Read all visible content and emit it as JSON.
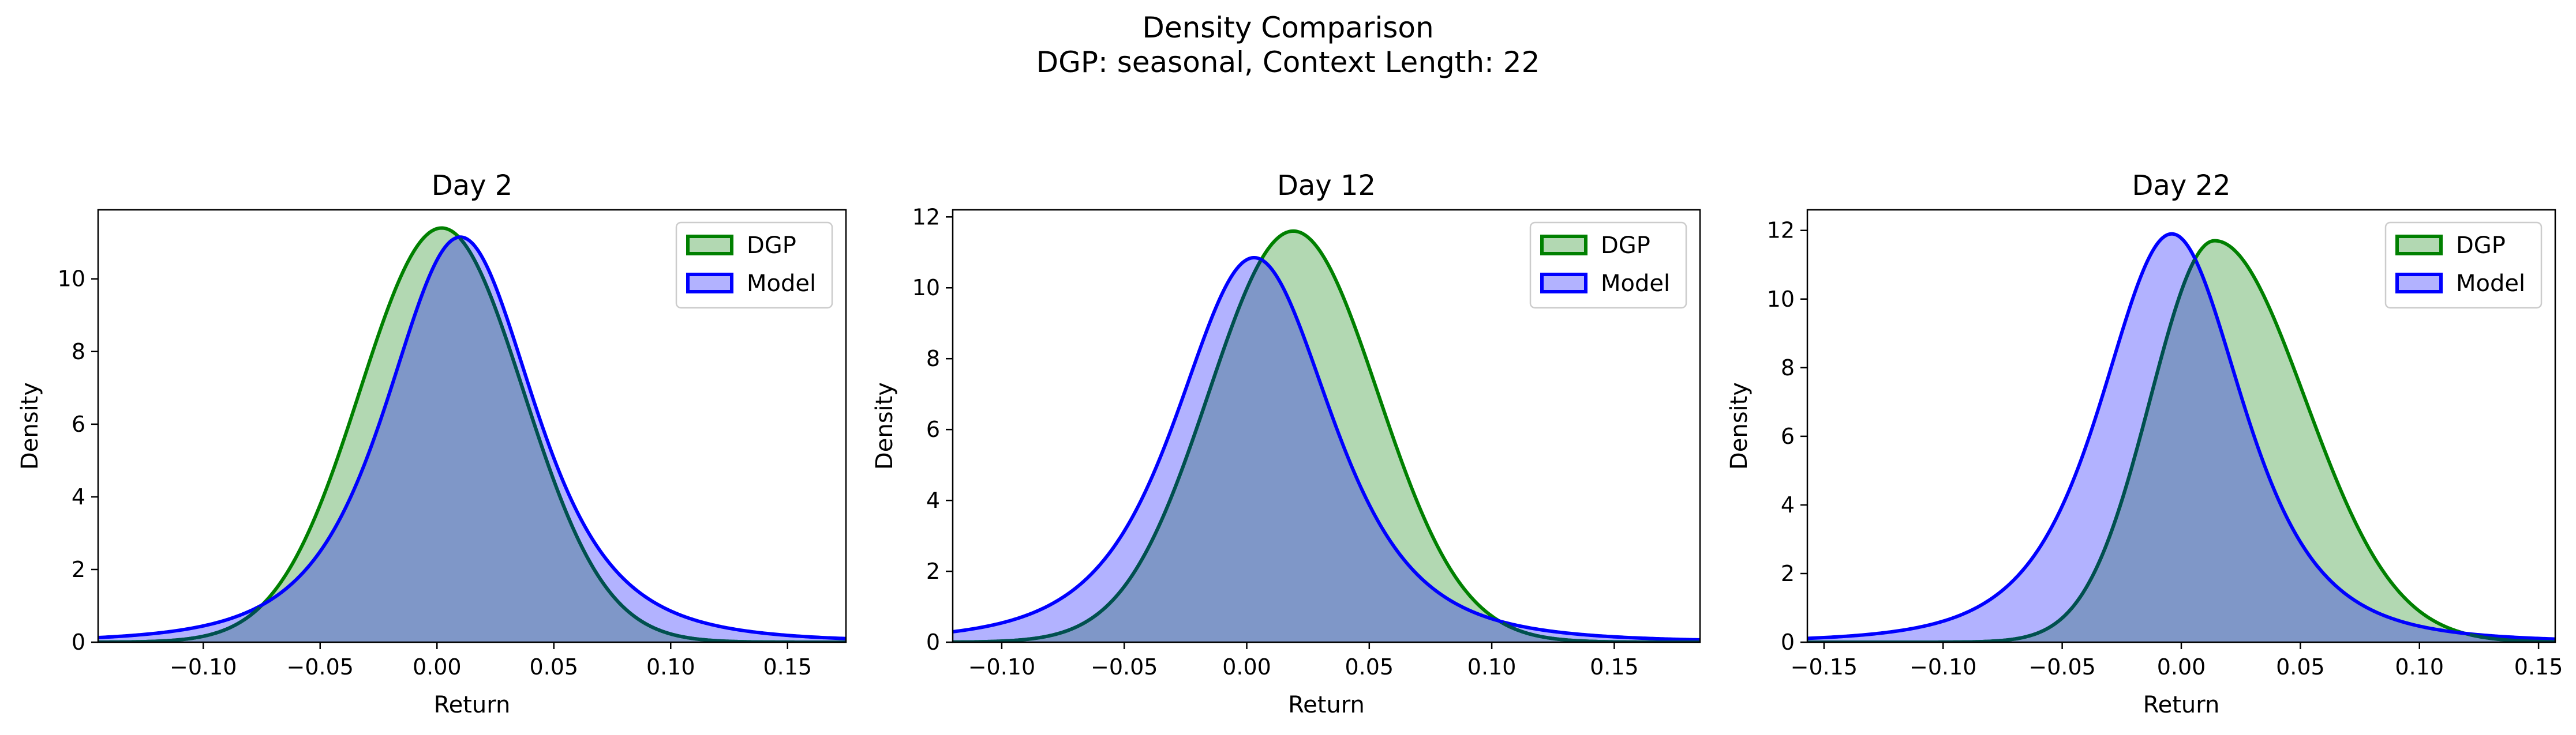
{
  "figure": {
    "title_line1": "Density Comparison",
    "title_line2": "DGP: seasonal, Context Length: 22"
  },
  "colors": {
    "dgp_line": "#008000",
    "dgp_fill": "#b2d8b2",
    "model_line": "#0000ff",
    "model_fill": "#b2b2ff",
    "overlap_fill": "#7f97c8",
    "overlap_line": "#00504f"
  },
  "chart_data": [
    {
      "type": "area",
      "title": "Day 2",
      "xlabel": "Return",
      "ylabel": "Density",
      "xlim": [
        -0.145,
        0.175
      ],
      "ylim": [
        0,
        11.9
      ],
      "xticks": [
        -0.1,
        -0.05,
        0.0,
        0.05,
        0.1,
        0.15
      ],
      "xtick_labels": [
        "−0.10",
        "−0.05",
        "0.00",
        "0.05",
        "0.10",
        "0.15"
      ],
      "yticks": [
        0,
        2,
        4,
        6,
        8,
        10
      ],
      "ytick_labels": [
        "0",
        "2",
        "4",
        "6",
        "8",
        "10"
      ],
      "legend_position": "top-right",
      "legend": [
        "DGP",
        "Model"
      ],
      "grid": false,
      "series": [
        {
          "name": "DGP",
          "kind": "normal",
          "mean": 0.002,
          "sd": 0.035,
          "peak": 11.4
        },
        {
          "name": "Model",
          "kind": "t",
          "mean": 0.01,
          "scale": 0.033,
          "df": 3.5,
          "peak": 11.15
        }
      ]
    },
    {
      "type": "area",
      "title": "Day 12",
      "xlabel": "Return",
      "ylabel": "Density",
      "xlim": [
        -0.12,
        0.185
      ],
      "ylim": [
        0,
        12.2
      ],
      "xticks": [
        -0.1,
        -0.05,
        0.0,
        0.05,
        0.1,
        0.15
      ],
      "xtick_labels": [
        "−0.10",
        "−0.05",
        "0.00",
        "0.05",
        "0.10",
        "0.15"
      ],
      "yticks": [
        0,
        2,
        4,
        6,
        8,
        10,
        12
      ],
      "ytick_labels": [
        "0",
        "2",
        "4",
        "6",
        "8",
        "10",
        "12"
      ],
      "legend_position": "top-right",
      "legend": [
        "DGP",
        "Model"
      ],
      "grid": false,
      "series": [
        {
          "name": "DGP",
          "kind": "normal",
          "mean": 0.019,
          "sd": 0.0345,
          "peak": 11.6
        },
        {
          "name": "Model",
          "kind": "t",
          "mean": 0.003,
          "scale": 0.033,
          "df": 3.5,
          "peak": 10.85
        }
      ]
    },
    {
      "type": "area",
      "title": "Day 22",
      "xlabel": "Return",
      "ylabel": "Density",
      "xlim": [
        -0.157,
        0.157
      ],
      "ylim": [
        0,
        12.6
      ],
      "xticks": [
        -0.15,
        -0.1,
        -0.05,
        0.0,
        0.05,
        0.1,
        0.15
      ],
      "xtick_labels": [
        "−0.15",
        "−0.10",
        "−0.05",
        "0.00",
        "0.05",
        "0.10",
        "0.15"
      ],
      "yticks": [
        0,
        2,
        4,
        6,
        8,
        10,
        12
      ],
      "ytick_labels": [
        "0",
        "2",
        "4",
        "6",
        "8",
        "10",
        "12"
      ],
      "legend_position": "top-right",
      "legend": [
        "DGP",
        "Model"
      ],
      "grid": false,
      "series": [
        {
          "name": "DGP",
          "kind": "skew",
          "mean": 0.014,
          "sd_left": 0.027,
          "sd_right": 0.038,
          "peak": 11.7
        },
        {
          "name": "Model",
          "kind": "t",
          "mean": -0.004,
          "scale": 0.031,
          "df": 3.5,
          "peak": 11.9
        }
      ]
    }
  ]
}
